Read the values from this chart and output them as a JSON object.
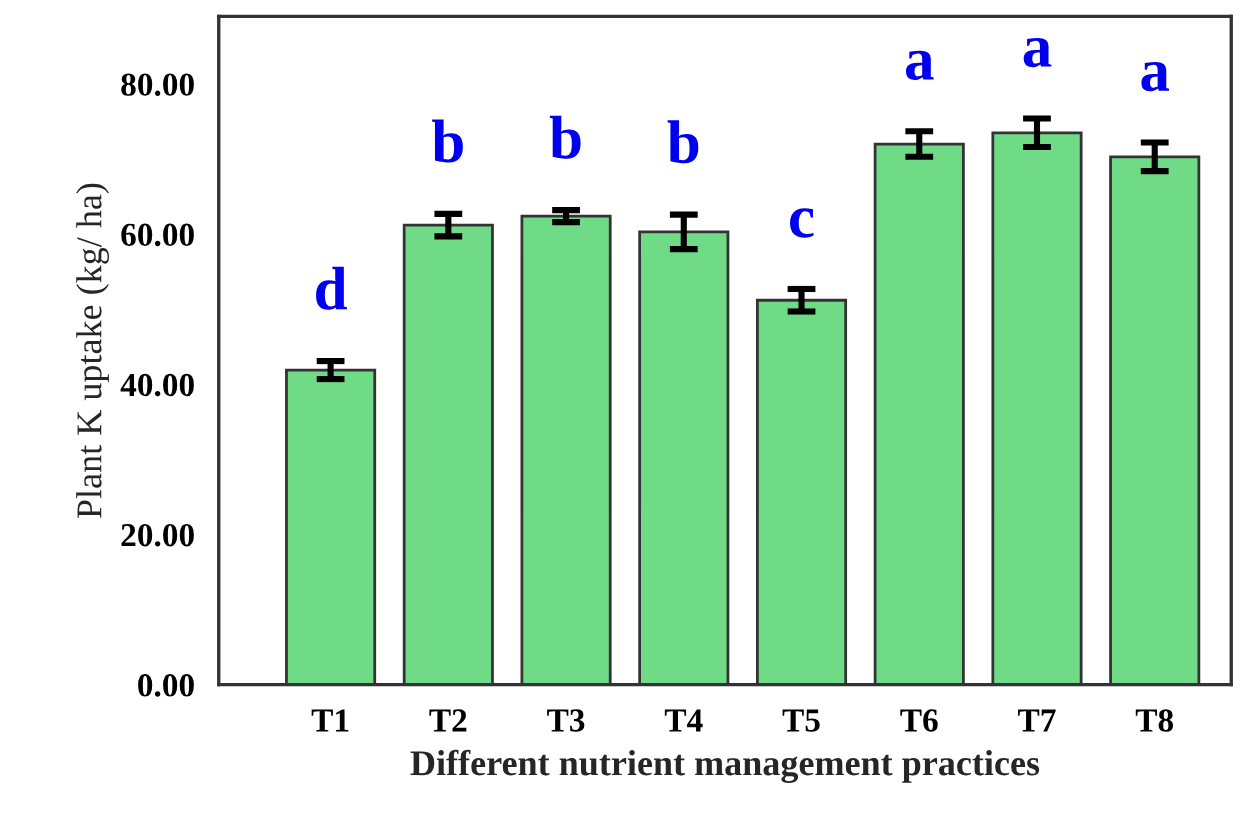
{
  "chart_data": {
    "type": "bar",
    "xlabel": "Different nutrient management practices",
    "ylabel": "Plant K uptake (kg/ ha)",
    "categories": [
      "T1",
      "T2",
      "T3",
      "T4",
      "T5",
      "T6",
      "T7",
      "T8"
    ],
    "values": [
      41.9,
      61.2,
      62.4,
      60.3,
      51.2,
      72.0,
      73.5,
      70.3
    ],
    "errors": [
      1.2,
      1.5,
      0.8,
      2.3,
      1.5,
      1.7,
      1.9,
      1.9
    ],
    "color": "#70db87",
    "ylim": [
      0,
      89
    ],
    "yticks": [
      {
        "value": 0,
        "label": "0.00"
      },
      {
        "value": 20,
        "label": "20.00"
      },
      {
        "value": 40,
        "label": "40.00"
      },
      {
        "value": 60,
        "label": "60.00"
      },
      {
        "value": 80,
        "label": "80.00"
      }
    ],
    "annotations": [
      "d",
      "b",
      "b",
      "b",
      "c",
      "a",
      "a",
      "a"
    ],
    "grid": false,
    "legend": false
  }
}
